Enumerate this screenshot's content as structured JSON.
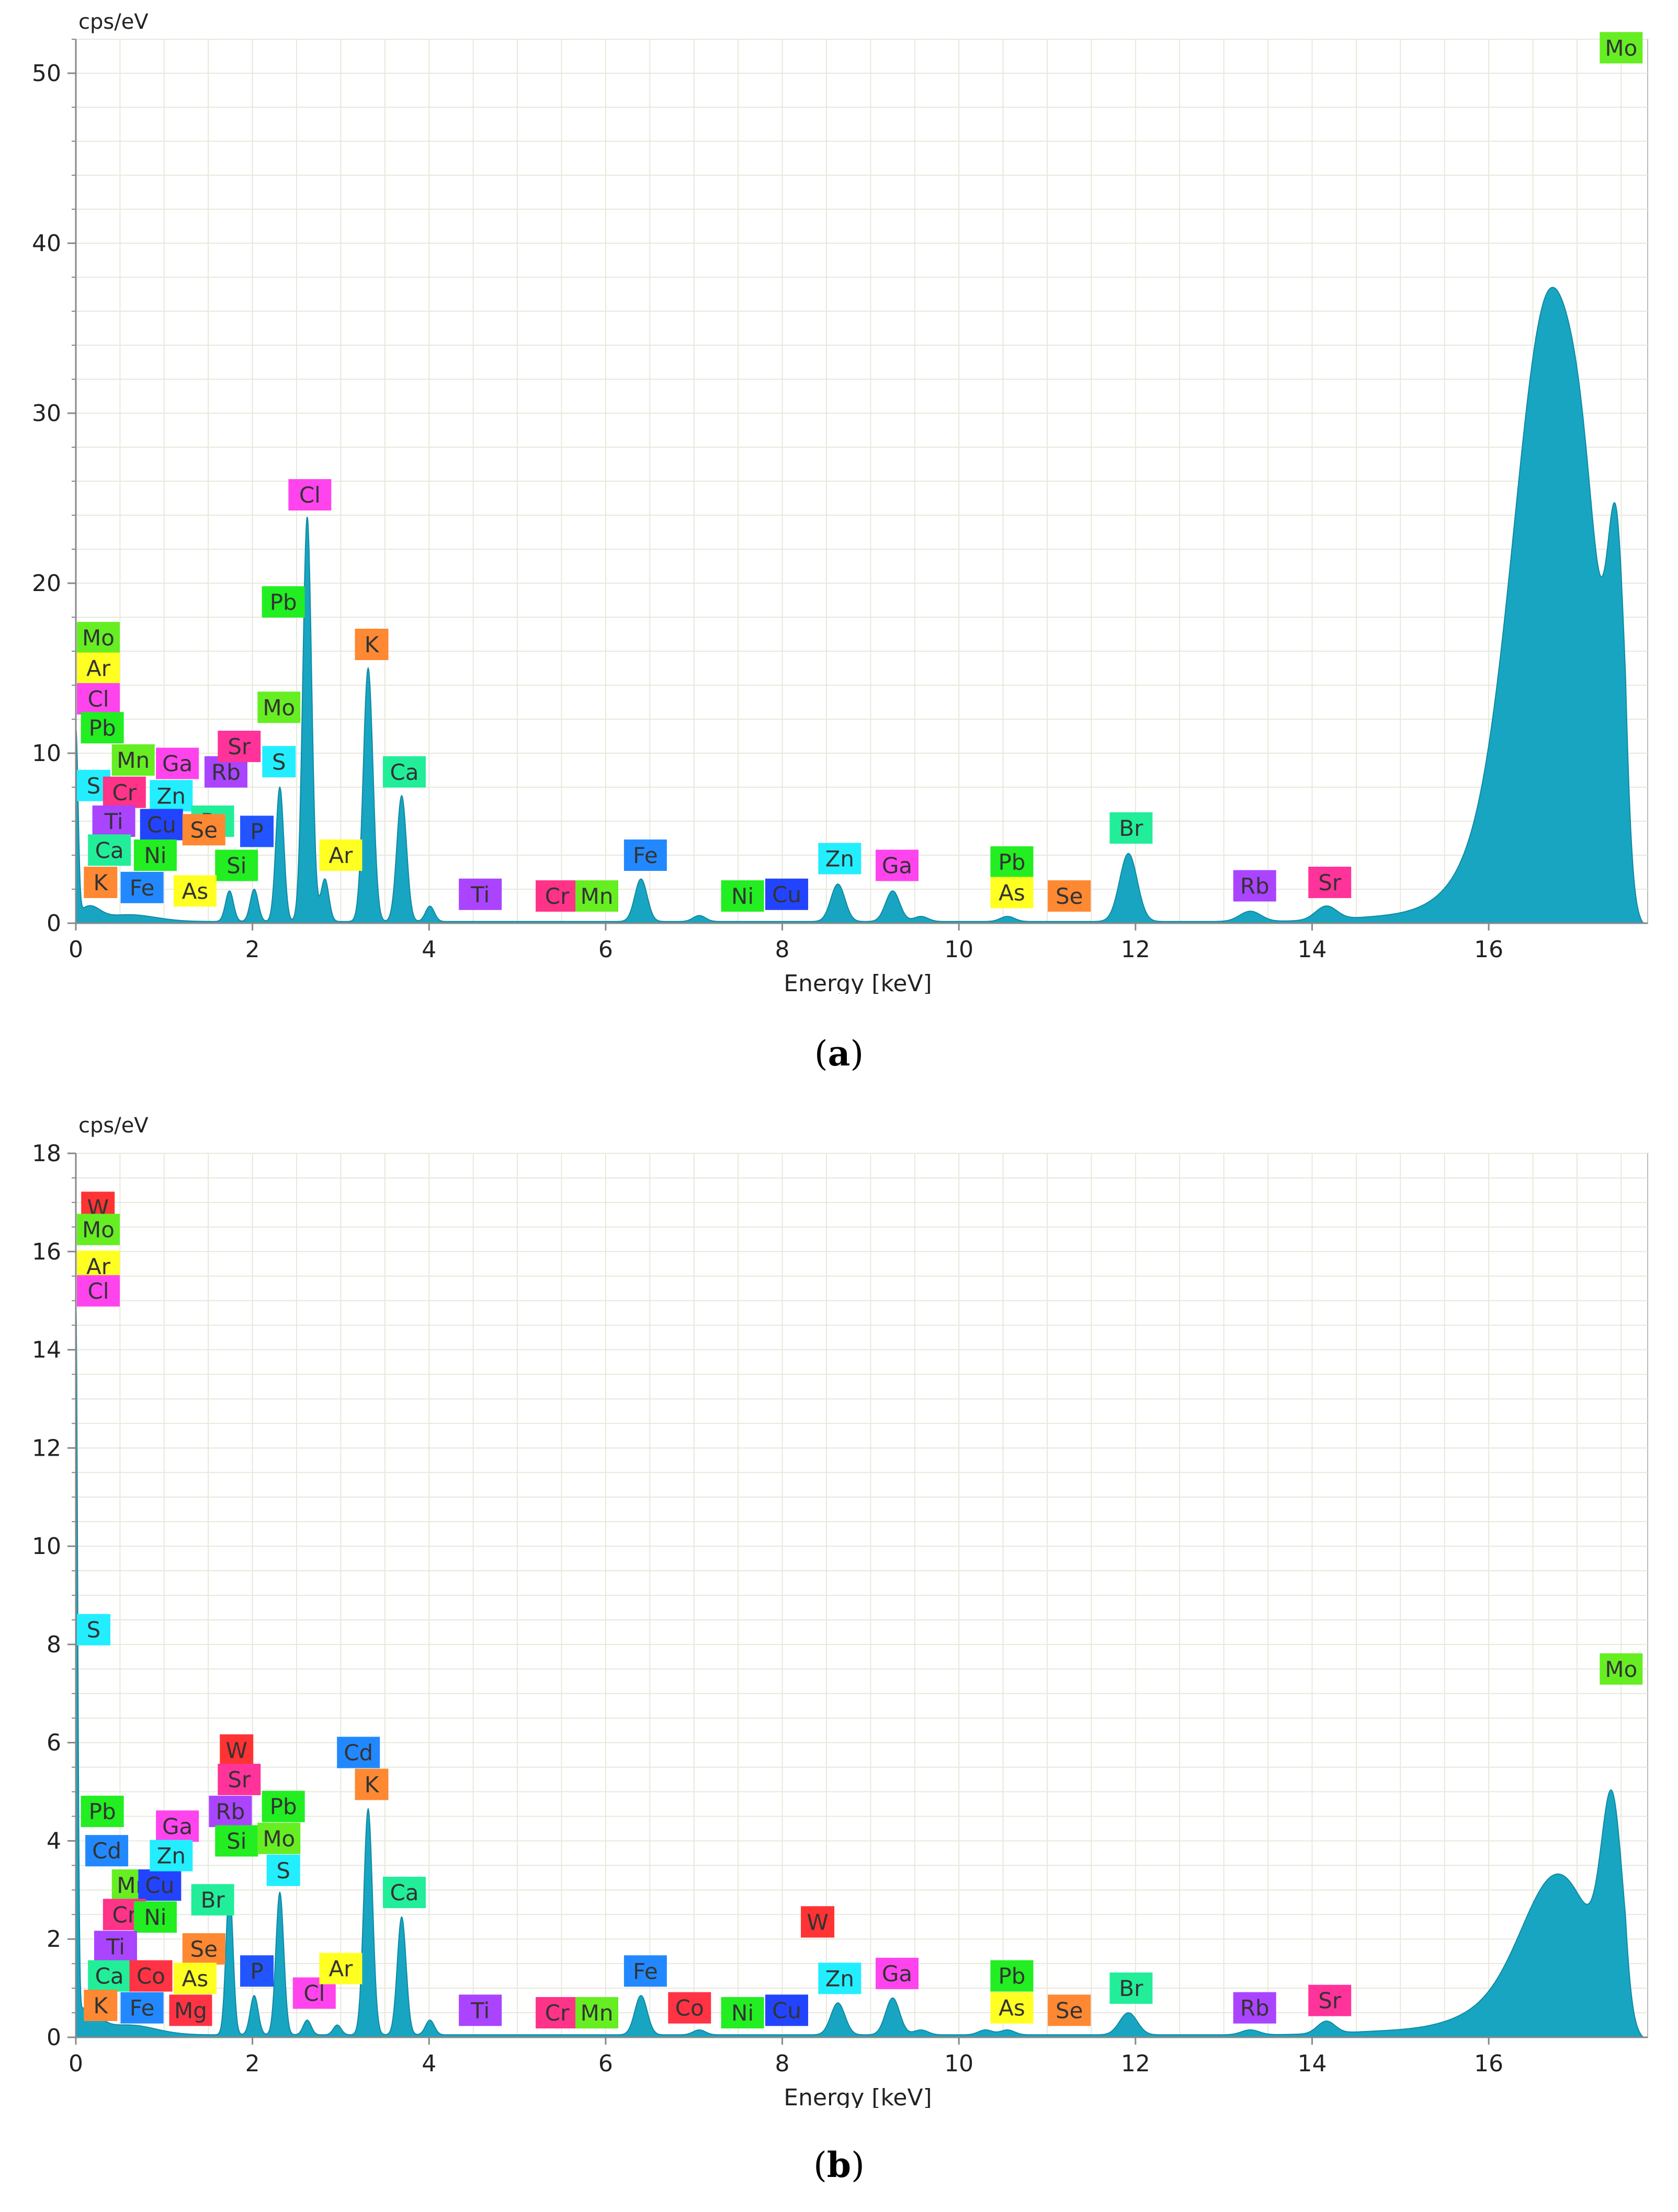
{
  "chart_data": [
    {
      "type": "area",
      "title": "",
      "ylabel": "cps/eV",
      "xlabel": "Energy [keV]",
      "xlim": [
        0,
        17.8
      ],
      "ylim": [
        0,
        52
      ],
      "xticks": [
        0,
        2,
        4,
        6,
        8,
        10,
        12,
        14,
        16
      ],
      "yticks": [
        0,
        10,
        20,
        30,
        40,
        50
      ],
      "spectrum": {
        "baseline": 0.1,
        "peaks": [
          {
            "e": 0.0,
            "h": 11.0,
            "w": 0.025
          },
          {
            "e": 0.15,
            "h": 0.8,
            "w": 0.12
          },
          {
            "e": 0.6,
            "h": 0.4,
            "w": 0.3
          },
          {
            "e": 1.74,
            "h": 1.8,
            "w": 0.045
          },
          {
            "e": 2.02,
            "h": 1.9,
            "w": 0.045
          },
          {
            "e": 2.31,
            "h": 7.9,
            "w": 0.045
          },
          {
            "e": 2.62,
            "h": 23.8,
            "w": 0.05
          },
          {
            "e": 2.82,
            "h": 2.5,
            "w": 0.045
          },
          {
            "e": 3.31,
            "h": 14.9,
            "w": 0.055
          },
          {
            "e": 3.69,
            "h": 7.4,
            "w": 0.055
          },
          {
            "e": 4.01,
            "h": 0.9,
            "w": 0.05
          },
          {
            "e": 6.4,
            "h": 2.5,
            "w": 0.07
          },
          {
            "e": 7.06,
            "h": 0.35,
            "w": 0.07
          },
          {
            "e": 8.63,
            "h": 2.2,
            "w": 0.08
          },
          {
            "e": 9.25,
            "h": 1.8,
            "w": 0.08
          },
          {
            "e": 9.57,
            "h": 0.3,
            "w": 0.08
          },
          {
            "e": 10.55,
            "h": 0.3,
            "w": 0.08
          },
          {
            "e": 11.92,
            "h": 4.0,
            "w": 0.1
          },
          {
            "e": 13.3,
            "h": 0.6,
            "w": 0.12
          },
          {
            "e": 14.16,
            "h": 0.8,
            "w": 0.12
          },
          {
            "e": 15.0,
            "h": 0.3,
            "w": 0.6
          },
          {
            "e": 16.7,
            "h": 36.0,
            "w": 0.4
          },
          {
            "e": 17.1,
            "h": 6.0,
            "w": 0.18
          },
          {
            "e": 17.45,
            "h": 17.0,
            "w": 0.1
          },
          {
            "e": 16.0,
            "h": 2.5,
            "w": 0.45
          }
        ]
      },
      "labels": [
        {
          "t": "Mo",
          "e": 0.25,
          "y": 16.8,
          "c": "#66ee22"
        },
        {
          "t": "Ar",
          "e": 0.25,
          "y": 15.0,
          "c": "#ffff22"
        },
        {
          "t": "Cl",
          "e": 0.2,
          "y": 13.2,
          "c": "#ff44ee"
        },
        {
          "t": "Pb",
          "e": 0.3,
          "y": 11.5,
          "c": "#22ee22"
        },
        {
          "t": "Mn",
          "e": 0.65,
          "y": 9.6,
          "c": "#66ee22"
        },
        {
          "t": "S",
          "e": 0.2,
          "y": 8.1,
          "c": "#22eeff"
        },
        {
          "t": "Cr",
          "e": 0.55,
          "y": 7.7,
          "c": "#ff3388"
        },
        {
          "t": "Ga",
          "e": 1.15,
          "y": 9.4,
          "c": "#ff44ee"
        },
        {
          "t": "Zn",
          "e": 1.08,
          "y": 7.5,
          "c": "#22eeff"
        },
        {
          "t": "Rb",
          "e": 1.7,
          "y": 8.9,
          "c": "#aa44ff"
        },
        {
          "t": "Sr",
          "e": 1.85,
          "y": 10.4,
          "c": "#ff3399"
        },
        {
          "t": "Ti",
          "e": 0.43,
          "y": 6.0,
          "c": "#aa44ff"
        },
        {
          "t": "Cu",
          "e": 0.97,
          "y": 5.8,
          "c": "#2244ff"
        },
        {
          "t": "Br",
          "e": 1.55,
          "y": 6.0,
          "c": "#22ee99"
        },
        {
          "t": "Se",
          "e": 1.45,
          "y": 5.5,
          "c": "#ff8833"
        },
        {
          "t": "P",
          "e": 2.05,
          "y": 5.4,
          "c": "#2255ff"
        },
        {
          "t": "Ca",
          "e": 0.38,
          "y": 4.3,
          "c": "#22ee99"
        },
        {
          "t": "Ni",
          "e": 0.9,
          "y": 4.0,
          "c": "#22ee22"
        },
        {
          "t": "Si",
          "e": 1.82,
          "y": 3.4,
          "c": "#22ee22"
        },
        {
          "t": "K",
          "e": 0.28,
          "y": 2.4,
          "c": "#ff8833"
        },
        {
          "t": "Fe",
          "e": 0.75,
          "y": 2.1,
          "c": "#2288ff"
        },
        {
          "t": "As",
          "e": 1.35,
          "y": 1.9,
          "c": "#ffff22"
        },
        {
          "t": "S",
          "e": 2.3,
          "y": 9.5,
          "c": "#22eeff"
        },
        {
          "t": "Mo",
          "e": 2.3,
          "y": 12.7,
          "c": "#66ee22"
        },
        {
          "t": "Pb",
          "e": 2.35,
          "y": 18.9,
          "c": "#22ee22"
        },
        {
          "t": "Cl",
          "e": 2.65,
          "y": 25.2,
          "c": "#ff44ee"
        },
        {
          "t": "K",
          "e": 3.35,
          "y": 16.4,
          "c": "#ff8833"
        },
        {
          "t": "Ca",
          "e": 3.72,
          "y": 8.9,
          "c": "#22ee99"
        },
        {
          "t": "Ar",
          "e": 3.0,
          "y": 4.0,
          "c": "#ffff22"
        },
        {
          "t": "Ti",
          "e": 4.58,
          "y": 1.7,
          "c": "#aa44ff"
        },
        {
          "t": "Cr",
          "e": 5.45,
          "y": 1.6,
          "c": "#ff3388"
        },
        {
          "t": "Mn",
          "e": 5.9,
          "y": 1.6,
          "c": "#66ee22"
        },
        {
          "t": "Fe",
          "e": 6.45,
          "y": 4.0,
          "c": "#2288ff"
        },
        {
          "t": "Ni",
          "e": 7.55,
          "y": 1.6,
          "c": "#22ee22"
        },
        {
          "t": "Cu",
          "e": 8.05,
          "y": 1.7,
          "c": "#2244ff"
        },
        {
          "t": "Zn",
          "e": 8.65,
          "y": 3.8,
          "c": "#22eeff"
        },
        {
          "t": "Ga",
          "e": 9.3,
          "y": 3.4,
          "c": "#ff44ee"
        },
        {
          "t": "Pb",
          "e": 10.6,
          "y": 3.6,
          "c": "#22ee22"
        },
        {
          "t": "As",
          "e": 10.6,
          "y": 1.8,
          "c": "#ffff22"
        },
        {
          "t": "Se",
          "e": 11.25,
          "y": 1.6,
          "c": "#ff8833"
        },
        {
          "t": "Br",
          "e": 11.95,
          "y": 5.6,
          "c": "#22ee99"
        },
        {
          "t": "Rb",
          "e": 13.35,
          "y": 2.2,
          "c": "#aa44ff"
        },
        {
          "t": "Sr",
          "e": 14.2,
          "y": 2.4,
          "c": "#ff3399"
        },
        {
          "t": "Mo",
          "e": 17.5,
          "y": 51.5,
          "c": "#66ee22"
        }
      ]
    },
    {
      "type": "area",
      "title": "",
      "ylabel": "cps/eV",
      "xlabel": "Energy [keV]",
      "xlim": [
        0,
        17.8
      ],
      "ylim": [
        0,
        18
      ],
      "xticks": [
        0,
        2,
        4,
        6,
        8,
        10,
        12,
        14,
        16
      ],
      "yticks": [
        0,
        2,
        4,
        6,
        8,
        10,
        12,
        14,
        16,
        18
      ],
      "spectrum": {
        "baseline": 0.05,
        "peaks": [
          {
            "e": 0.0,
            "h": 14.6,
            "w": 0.02
          },
          {
            "e": 0.1,
            "h": 0.5,
            "w": 0.15
          },
          {
            "e": 0.6,
            "h": 0.2,
            "w": 0.3
          },
          {
            "e": 1.74,
            "h": 3.0,
            "w": 0.04
          },
          {
            "e": 2.02,
            "h": 0.8,
            "w": 0.045
          },
          {
            "e": 2.31,
            "h": 2.9,
            "w": 0.045
          },
          {
            "e": 2.62,
            "h": 0.3,
            "w": 0.045
          },
          {
            "e": 2.96,
            "h": 0.2,
            "w": 0.045
          },
          {
            "e": 3.31,
            "h": 4.6,
            "w": 0.05
          },
          {
            "e": 3.69,
            "h": 2.4,
            "w": 0.05
          },
          {
            "e": 4.01,
            "h": 0.3,
            "w": 0.05
          },
          {
            "e": 6.4,
            "h": 0.8,
            "w": 0.07
          },
          {
            "e": 7.06,
            "h": 0.1,
            "w": 0.07
          },
          {
            "e": 8.63,
            "h": 0.65,
            "w": 0.08
          },
          {
            "e": 9.25,
            "h": 0.75,
            "w": 0.08
          },
          {
            "e": 9.57,
            "h": 0.1,
            "w": 0.08
          },
          {
            "e": 10.3,
            "h": 0.1,
            "w": 0.08
          },
          {
            "e": 10.55,
            "h": 0.1,
            "w": 0.08
          },
          {
            "e": 11.92,
            "h": 0.45,
            "w": 0.1
          },
          {
            "e": 13.3,
            "h": 0.1,
            "w": 0.1
          },
          {
            "e": 14.16,
            "h": 0.25,
            "w": 0.1
          },
          {
            "e": 15.0,
            "h": 0.08,
            "w": 0.6
          },
          {
            "e": 16.8,
            "h": 3.2,
            "w": 0.42
          },
          {
            "e": 17.4,
            "h": 3.8,
            "w": 0.12
          },
          {
            "e": 16.0,
            "h": 0.35,
            "w": 0.45
          }
        ]
      },
      "labels": [
        {
          "t": "W",
          "e": 0.25,
          "y": 16.9,
          "c": "#ff3333"
        },
        {
          "t": "Mo",
          "e": 0.25,
          "y": 16.45,
          "c": "#66ee22"
        },
        {
          "t": "Ar",
          "e": 0.25,
          "y": 15.7,
          "c": "#ffff22"
        },
        {
          "t": "Cl",
          "e": 0.2,
          "y": 15.2,
          "c": "#ff44ee"
        },
        {
          "t": "S",
          "e": 0.2,
          "y": 8.3,
          "c": "#22eeff"
        },
        {
          "t": "Pb",
          "e": 0.3,
          "y": 4.6,
          "c": "#22ee22"
        },
        {
          "t": "Cd",
          "e": 0.35,
          "y": 3.8,
          "c": "#2288ff"
        },
        {
          "t": "Mn",
          "e": 0.65,
          "y": 3.1,
          "c": "#66ee22"
        },
        {
          "t": "Cu",
          "e": 0.95,
          "y": 3.1,
          "c": "#2244ff"
        },
        {
          "t": "Ga",
          "e": 1.15,
          "y": 4.3,
          "c": "#ff44ee"
        },
        {
          "t": "Zn",
          "e": 1.08,
          "y": 3.7,
          "c": "#22eeff"
        },
        {
          "t": "Cr",
          "e": 0.55,
          "y": 2.5,
          "c": "#ff3388"
        },
        {
          "t": "Ni",
          "e": 0.9,
          "y": 2.45,
          "c": "#22ee22"
        },
        {
          "t": "Ti",
          "e": 0.45,
          "y": 1.85,
          "c": "#aa44ff"
        },
        {
          "t": "Br",
          "e": 1.55,
          "y": 2.8,
          "c": "#22ee99"
        },
        {
          "t": "Se",
          "e": 1.45,
          "y": 1.8,
          "c": "#ff8833"
        },
        {
          "t": "Ca",
          "e": 0.38,
          "y": 1.25,
          "c": "#22ee99"
        },
        {
          "t": "Co",
          "e": 0.85,
          "y": 1.25,
          "c": "#ff3344"
        },
        {
          "t": "As",
          "e": 1.35,
          "y": 1.2,
          "c": "#ffff22"
        },
        {
          "t": "K",
          "e": 0.28,
          "y": 0.65,
          "c": "#ff8833"
        },
        {
          "t": "Fe",
          "e": 0.75,
          "y": 0.6,
          "c": "#2288ff"
        },
        {
          "t": "Mg",
          "e": 1.3,
          "y": 0.55,
          "c": "#ff3344"
        },
        {
          "t": "W",
          "e": 1.82,
          "y": 5.85,
          "c": "#ff3333"
        },
        {
          "t": "Sr",
          "e": 1.85,
          "y": 5.25,
          "c": "#ff3399"
        },
        {
          "t": "Rb",
          "e": 1.75,
          "y": 4.6,
          "c": "#aa44ff"
        },
        {
          "t": "Si",
          "e": 1.82,
          "y": 4.0,
          "c": "#22ee22"
        },
        {
          "t": "Pb",
          "e": 2.35,
          "y": 4.7,
          "c": "#22ee22"
        },
        {
          "t": "Mo",
          "e": 2.3,
          "y": 4.05,
          "c": "#66ee22"
        },
        {
          "t": "S",
          "e": 2.35,
          "y": 3.4,
          "c": "#22eeff"
        },
        {
          "t": "P",
          "e": 2.05,
          "y": 1.35,
          "c": "#2255ff"
        },
        {
          "t": "Cl",
          "e": 2.7,
          "y": 0.9,
          "c": "#ff44ee"
        },
        {
          "t": "Ar",
          "e": 3.0,
          "y": 1.4,
          "c": "#ffff22"
        },
        {
          "t": "Cd",
          "e": 3.2,
          "y": 5.8,
          "c": "#2288ff"
        },
        {
          "t": "K",
          "e": 3.35,
          "y": 5.15,
          "c": "#ff8833"
        },
        {
          "t": "Ca",
          "e": 3.72,
          "y": 2.95,
          "c": "#22ee99"
        },
        {
          "t": "Ti",
          "e": 4.58,
          "y": 0.55,
          "c": "#aa44ff"
        },
        {
          "t": "Cr",
          "e": 5.45,
          "y": 0.5,
          "c": "#ff3388"
        },
        {
          "t": "Mn",
          "e": 5.9,
          "y": 0.5,
          "c": "#66ee22"
        },
        {
          "t": "Fe",
          "e": 6.45,
          "y": 1.35,
          "c": "#2288ff"
        },
        {
          "t": "Co",
          "e": 6.95,
          "y": 0.6,
          "c": "#ff3344"
        },
        {
          "t": "Ni",
          "e": 7.55,
          "y": 0.5,
          "c": "#22ee22"
        },
        {
          "t": "Cu",
          "e": 8.05,
          "y": 0.55,
          "c": "#2244ff"
        },
        {
          "t": "W",
          "e": 8.4,
          "y": 2.35,
          "c": "#ff3333"
        },
        {
          "t": "Zn",
          "e": 8.65,
          "y": 1.2,
          "c": "#22eeff"
        },
        {
          "t": "Ga",
          "e": 9.3,
          "y": 1.3,
          "c": "#ff44ee"
        },
        {
          "t": "Pb",
          "e": 10.6,
          "y": 1.25,
          "c": "#22ee22"
        },
        {
          "t": "As",
          "e": 10.6,
          "y": 0.6,
          "c": "#ffff22"
        },
        {
          "t": "Se",
          "e": 11.25,
          "y": 0.55,
          "c": "#ff8833"
        },
        {
          "t": "Br",
          "e": 11.95,
          "y": 1.0,
          "c": "#22ee99"
        },
        {
          "t": "Rb",
          "e": 13.35,
          "y": 0.6,
          "c": "#aa44ff"
        },
        {
          "t": "Sr",
          "e": 14.2,
          "y": 0.75,
          "c": "#ff3399"
        },
        {
          "t": "Mo",
          "e": 17.5,
          "y": 7.5,
          "c": "#66ee22"
        }
      ]
    }
  ],
  "captions": {
    "a": "(a)",
    "b": "(b)",
    "a_letter": "a",
    "b_letter": "b"
  },
  "colors": {
    "fill": "#18a5c1",
    "grid": "#e8e8dc",
    "axis": "#888888"
  }
}
